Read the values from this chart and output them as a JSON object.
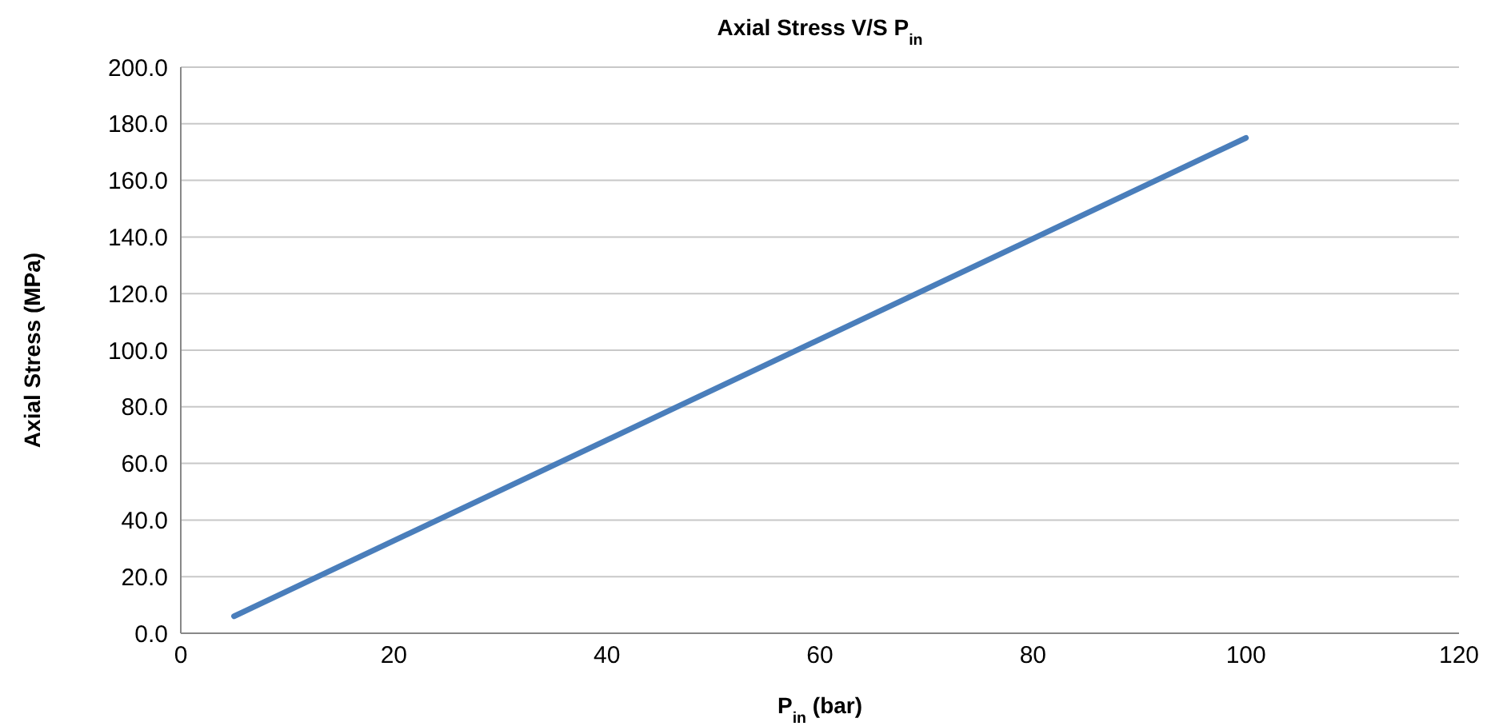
{
  "chart_data": {
    "type": "line",
    "title": "Axial Stress  V/S  P$_{in}$",
    "xlabel": "P$_{in}$ (bar)",
    "ylabel": "Axial Stress (MPa)",
    "x": [
      5,
      100
    ],
    "series": [
      {
        "color": "#4a7ebb",
        "values": [
          6.0,
          175.0
        ]
      }
    ],
    "xlim": [
      0,
      120
    ],
    "xticks": [
      0,
      20,
      40,
      60,
      80,
      100,
      120
    ],
    "ylim": [
      0,
      200
    ],
    "yticks": [
      {
        "value": 0,
        "label": "0.0"
      },
      {
        "value": 20,
        "label": "20.0"
      },
      {
        "value": 40,
        "label": "40.0"
      },
      {
        "value": 60,
        "label": "60.0"
      },
      {
        "value": 80,
        "label": "80.0"
      },
      {
        "value": 100,
        "label": "100.0"
      },
      {
        "value": 120,
        "label": "120.0"
      },
      {
        "value": 140,
        "label": "140.0"
      },
      {
        "value": 160,
        "label": "160.0"
      },
      {
        "value": 180,
        "label": "180.0"
      },
      {
        "value": 200,
        "label": "200.0"
      }
    ],
    "grid": "y",
    "marker": "none",
    "line_style": "solid"
  }
}
